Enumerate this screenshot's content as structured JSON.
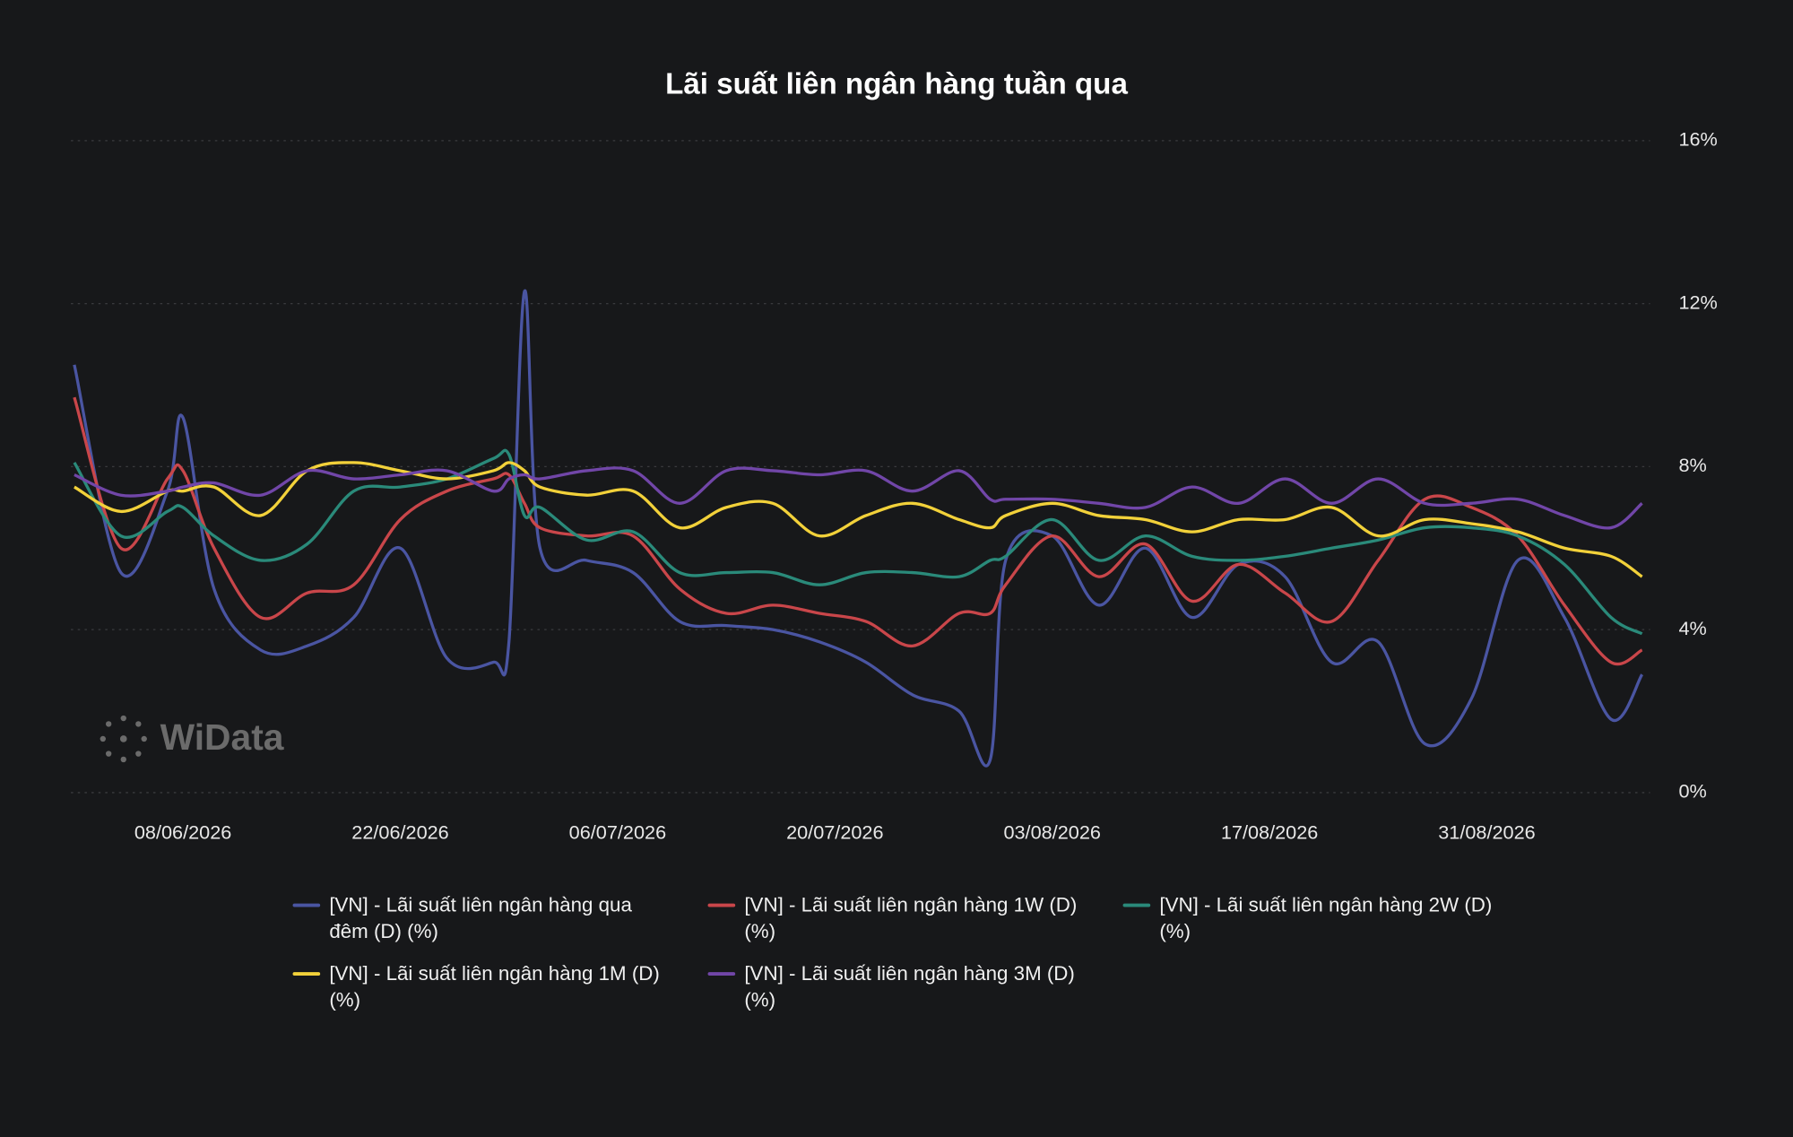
{
  "chart_data": {
    "type": "line",
    "title": "Lãi suất liên ngân hàng tuần qua",
    "watermark": "WiData",
    "x": [
      "01/06/2026",
      "04/06/2026",
      "07/06/2026",
      "08/06/2026",
      "10/06/2026",
      "13/06/2026",
      "16/06/2026",
      "19/06/2026",
      "22/06/2026",
      "25/06/2026",
      "28/06/2026",
      "29/06/2026",
      "30/06/2026",
      "01/07/2026",
      "04/07/2026",
      "07/07/2026",
      "10/07/2026",
      "13/07/2026",
      "16/07/2026",
      "19/07/2026",
      "22/07/2026",
      "25/07/2026",
      "28/07/2026",
      "30/07/2026",
      "31/07/2026",
      "03/08/2026",
      "06/08/2026",
      "09/08/2026",
      "12/08/2026",
      "15/08/2026",
      "18/08/2026",
      "21/08/2026",
      "24/08/2026",
      "27/08/2026",
      "30/08/2026",
      "02/09/2026",
      "05/09/2026",
      "08/09/2026",
      "10/09/2026"
    ],
    "xlim": [
      "01/06/2026",
      "10/09/2026"
    ],
    "xticks": [
      "08/06/2026",
      "22/06/2026",
      "06/07/2026",
      "20/07/2026",
      "03/08/2026",
      "17/08/2026",
      "31/08/2026"
    ],
    "ylim": [
      0,
      16
    ],
    "yticks": [
      {
        "value": 0,
        "label": "0%"
      },
      {
        "value": 4,
        "label": "4%"
      },
      {
        "value": 8,
        "label": "8%"
      },
      {
        "value": 12,
        "label": "12%"
      },
      {
        "value": 16,
        "label": "16%"
      }
    ],
    "grid": true,
    "y_axis_side": "right",
    "legend": "bottom",
    "series": [
      {
        "name": "[VN] - Lãi suất liên ngân hàng qua đêm (D) (%)",
        "color": "#4a55a2",
        "values": [
          10.5,
          5.4,
          7.4,
          9.2,
          5.0,
          3.5,
          3.6,
          4.3,
          6.0,
          3.3,
          3.2,
          3.7,
          12.3,
          6.0,
          5.7,
          5.4,
          4.2,
          4.1,
          4.0,
          3.7,
          3.2,
          2.4,
          2.0,
          0.8,
          5.7,
          6.3,
          4.6,
          6.0,
          4.3,
          5.6,
          5.3,
          3.2,
          3.7,
          1.2,
          2.3,
          5.7,
          4.3,
          1.8,
          2.9
        ]
      },
      {
        "name": "[VN] - Lãi suất liên ngân hàng 1W (D) (%)",
        "color": "#c9464a",
        "values": [
          9.7,
          6.0,
          7.7,
          7.9,
          6.0,
          4.3,
          4.9,
          5.1,
          6.7,
          7.4,
          7.7,
          7.8,
          7.1,
          6.5,
          6.3,
          6.3,
          5.0,
          4.4,
          4.6,
          4.4,
          4.2,
          3.6,
          4.4,
          4.4,
          5.1,
          6.3,
          5.3,
          6.1,
          4.7,
          5.6,
          4.9,
          4.2,
          5.7,
          7.2,
          7.0,
          6.3,
          4.6,
          3.2,
          3.5
        ]
      },
      {
        "name": "[VN] - Lãi suất liên ngân hàng 2W (D) (%)",
        "color": "#2a8a7a",
        "values": [
          8.1,
          6.3,
          6.9,
          7.0,
          6.3,
          5.7,
          6.1,
          7.4,
          7.5,
          7.7,
          8.2,
          8.3,
          6.8,
          7.0,
          6.2,
          6.4,
          5.4,
          5.4,
          5.4,
          5.1,
          5.4,
          5.4,
          5.3,
          5.7,
          5.8,
          6.7,
          5.7,
          6.3,
          5.8,
          5.7,
          5.8,
          6.0,
          6.2,
          6.5,
          6.5,
          6.3,
          5.6,
          4.3,
          3.9
        ]
      },
      {
        "name": "[VN] - Lãi suất liên ngân hàng 1M (D) (%)",
        "color": "#f2d13a",
        "values": [
          7.5,
          6.9,
          7.4,
          7.4,
          7.5,
          6.8,
          7.9,
          8.1,
          7.9,
          7.7,
          7.9,
          8.1,
          7.9,
          7.5,
          7.3,
          7.4,
          6.5,
          7.0,
          7.1,
          6.3,
          6.8,
          7.1,
          6.7,
          6.5,
          6.8,
          7.1,
          6.8,
          6.7,
          6.4,
          6.7,
          6.7,
          7.0,
          6.3,
          6.7,
          6.6,
          6.4,
          6.0,
          5.8,
          5.3
        ]
      },
      {
        "name": "[VN] - Lãi suất liên ngân hàng 3M (D) (%)",
        "color": "#7146a8",
        "values": [
          7.8,
          7.3,
          7.4,
          7.5,
          7.6,
          7.3,
          7.9,
          7.7,
          7.8,
          7.9,
          7.4,
          7.7,
          7.8,
          7.7,
          7.9,
          7.9,
          7.1,
          7.9,
          7.9,
          7.8,
          7.9,
          7.4,
          7.9,
          7.2,
          7.2,
          7.2,
          7.1,
          7.0,
          7.5,
          7.1,
          7.7,
          7.1,
          7.7,
          7.1,
          7.1,
          7.2,
          6.8,
          6.5,
          7.1
        ]
      }
    ]
  }
}
